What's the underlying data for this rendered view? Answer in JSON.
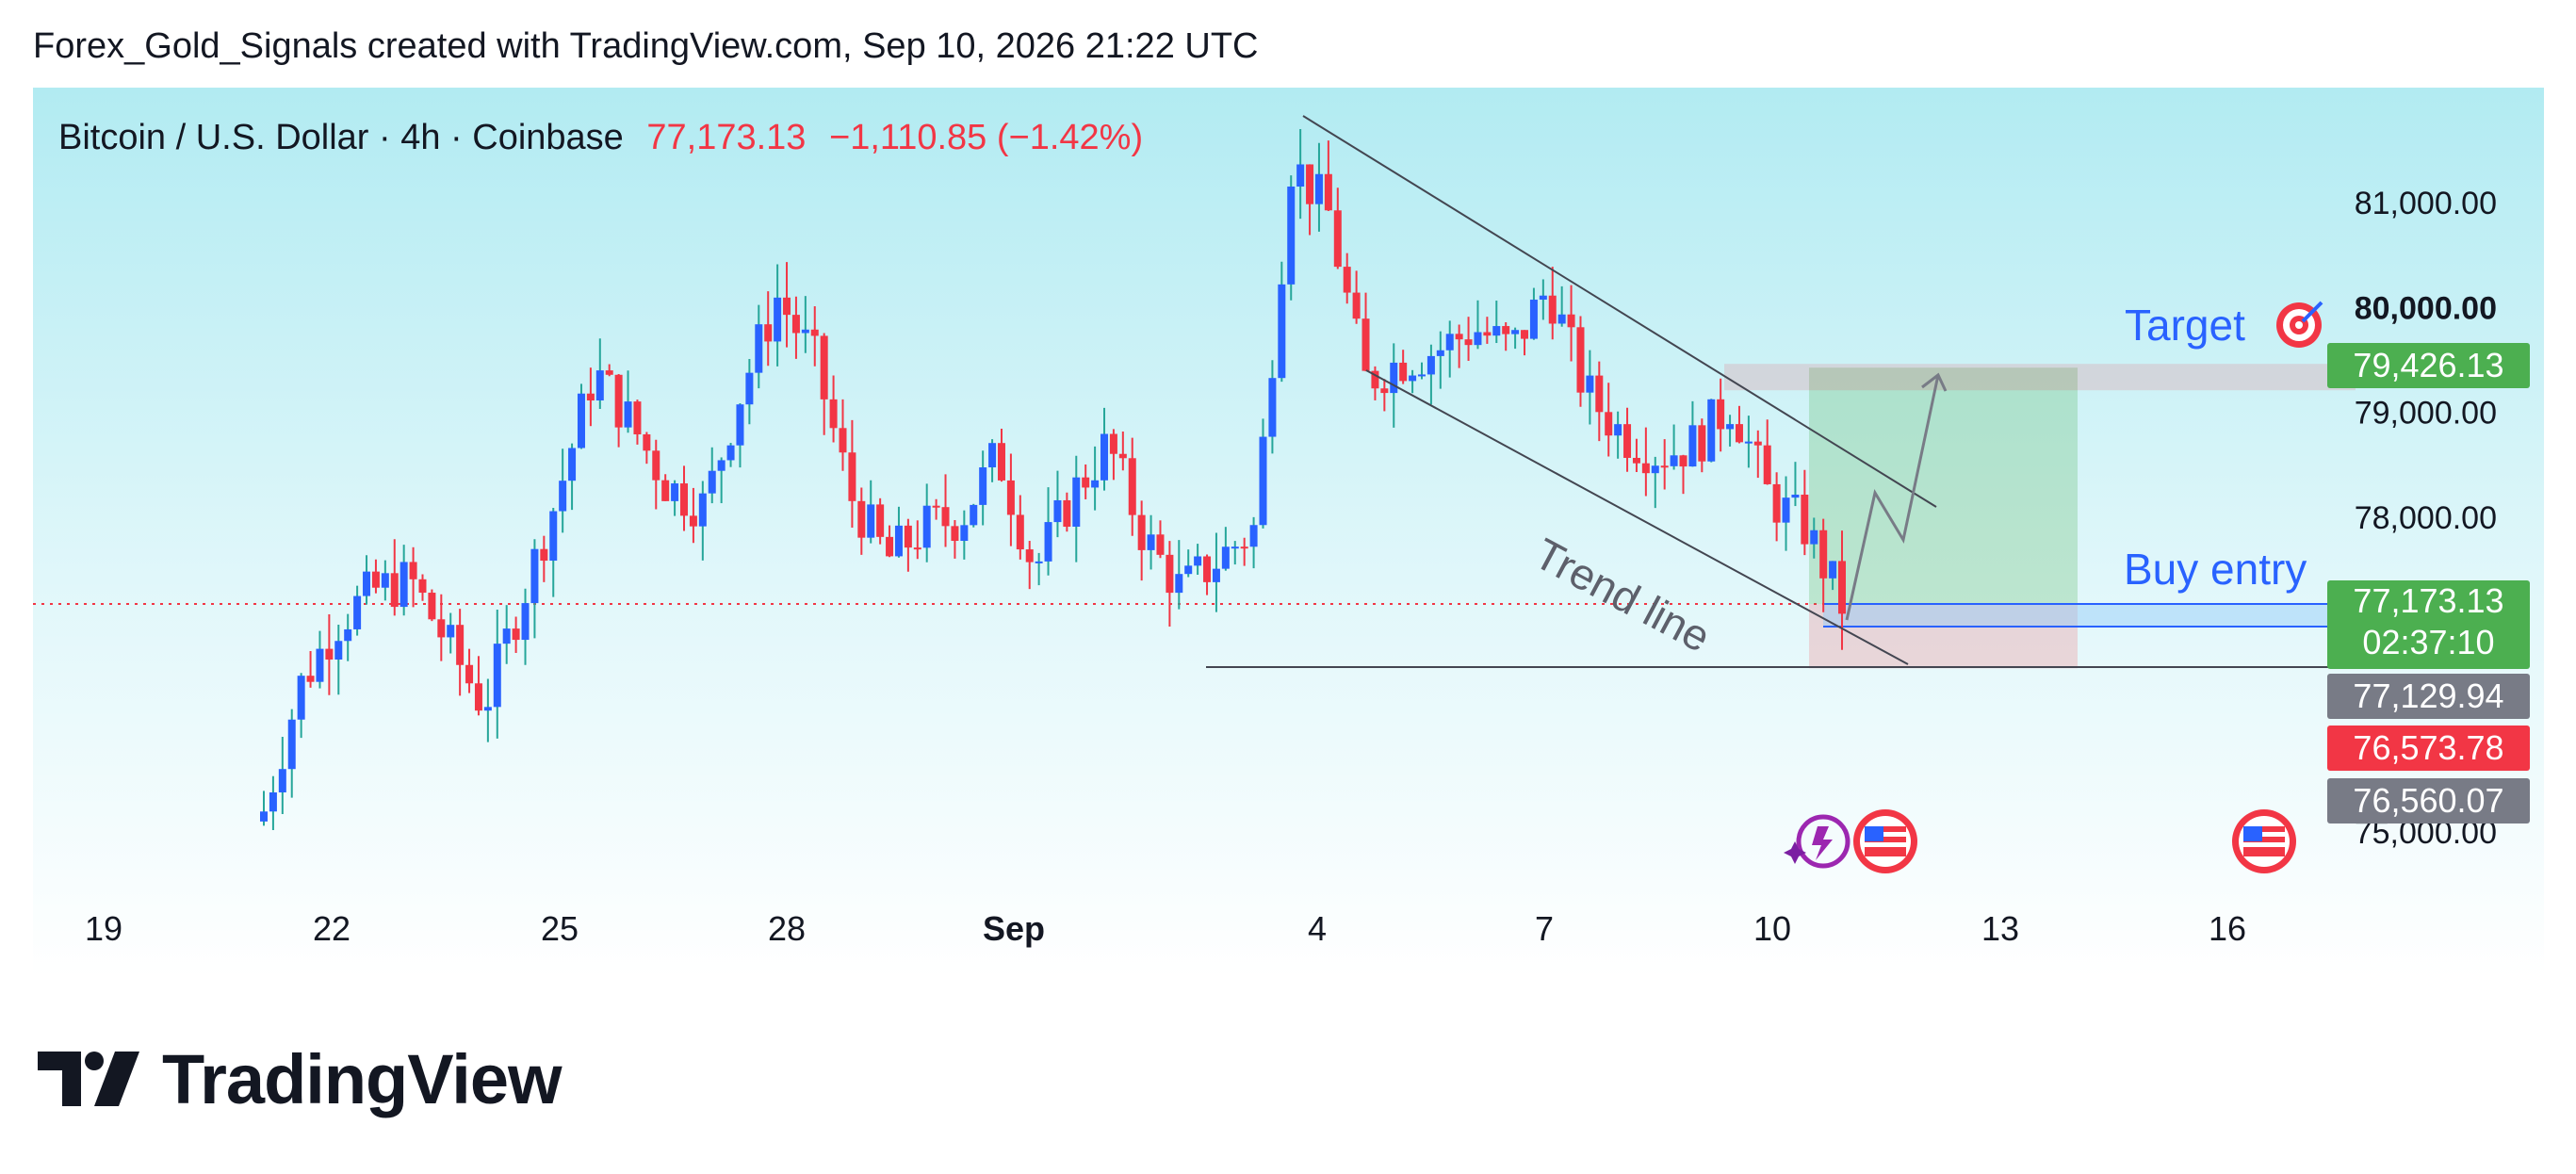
{
  "header": {
    "credit": "Forex_Gold_Signals created with TradingView.com, Sep 10, 2026 21:22 UTC"
  },
  "symbol": {
    "name": "Bitcoin / U.S. Dollar · 4h · Coinbase",
    "price": "77,173.13",
    "change": "−1,110.85 (−1.42%)"
  },
  "annotations": {
    "trend_line": "Trend line",
    "target": "Target",
    "buy_entry": "Buy entry"
  },
  "price_tags": {
    "target": "79,426.13",
    "current": "77,173.13",
    "countdown": "02:37:10",
    "tag3": "77,129.94",
    "tag4": "76,573.78",
    "tag5": "76,560.07"
  },
  "colors": {
    "up": "#2962ff",
    "down": "#f23645",
    "green_tag": "#4caf50",
    "red_tag": "#f23645",
    "grey_tag": "#787b86"
  },
  "logo": {
    "text": "TradingView"
  },
  "chart_data": {
    "type": "candlestick",
    "title": "Bitcoin / U.S. Dollar · 4h · Coinbase",
    "x_tick_labels": [
      "19",
      "22",
      "25",
      "28",
      "Sep",
      "4",
      "7",
      "10",
      "13",
      "16"
    ],
    "y_tick_labels": [
      "75,000.00",
      "78,000.00",
      "79,000.00",
      "80,000.00",
      "81,000.00"
    ],
    "ylim": [
      74800,
      81900
    ],
    "last_price": 77173.13,
    "target_price": 79426.13,
    "stop_price": 76560.07,
    "series_close": [
      {
        "x": "Aug 19",
        "close": 75200
      },
      {
        "x": "Aug 20",
        "close": 76400
      },
      {
        "x": "Aug 20",
        "close": 77000
      },
      {
        "x": "Aug 21",
        "close": 77300
      },
      {
        "x": "Aug 22",
        "close": 77400
      },
      {
        "x": "Aug 23",
        "close": 76800
      },
      {
        "x": "Aug 24",
        "close": 76200
      },
      {
        "x": "Aug 24",
        "close": 77200
      },
      {
        "x": "Aug 25",
        "close": 78200
      },
      {
        "x": "Aug 25",
        "close": 79400
      },
      {
        "x": "Aug 26",
        "close": 78900
      },
      {
        "x": "Aug 26",
        "close": 78300
      },
      {
        "x": "Aug 27",
        "close": 78100
      },
      {
        "x": "Aug 28",
        "close": 79200
      },
      {
        "x": "Aug 28",
        "close": 80100
      },
      {
        "x": "Aug 29",
        "close": 79500
      },
      {
        "x": "Aug 29",
        "close": 78200
      },
      {
        "x": "Aug 30",
        "close": 77600
      },
      {
        "x": "Aug 31",
        "close": 77900
      },
      {
        "x": "Aug 31",
        "close": 78000
      },
      {
        "x": "Sep 1",
        "close": 78600
      },
      {
        "x": "Sep 1",
        "close": 77500
      },
      {
        "x": "Sep 2",
        "close": 78200
      },
      {
        "x": "Sep 2",
        "close": 78700
      },
      {
        "x": "Sep 3",
        "close": 77800
      },
      {
        "x": "Sep 3",
        "close": 77300
      },
      {
        "x": "Sep 3",
        "close": 77600
      },
      {
        "x": "Sep 4",
        "close": 77900
      },
      {
        "x": "Sep 4",
        "close": 81400
      },
      {
        "x": "Sep 4",
        "close": 80900
      },
      {
        "x": "Sep 5",
        "close": 79300
      },
      {
        "x": "Sep 5",
        "close": 79500
      },
      {
        "x": "Sep 6",
        "close": 79600
      },
      {
        "x": "Sep 6",
        "close": 79800
      },
      {
        "x": "Sep 7",
        "close": 79600
      },
      {
        "x": "Sep 7",
        "close": 80200
      },
      {
        "x": "Sep 8",
        "close": 79200
      },
      {
        "x": "Sep 8",
        "close": 78800
      },
      {
        "x": "Sep 9",
        "close": 78600
      },
      {
        "x": "Sep 9",
        "close": 78700
      },
      {
        "x": "Sep 9",
        "close": 79100
      },
      {
        "x": "Sep 10",
        "close": 78200
      },
      {
        "x": "Sep 10",
        "close": 77900
      },
      {
        "x": "Sep 10",
        "close": 77173.13
      }
    ]
  }
}
